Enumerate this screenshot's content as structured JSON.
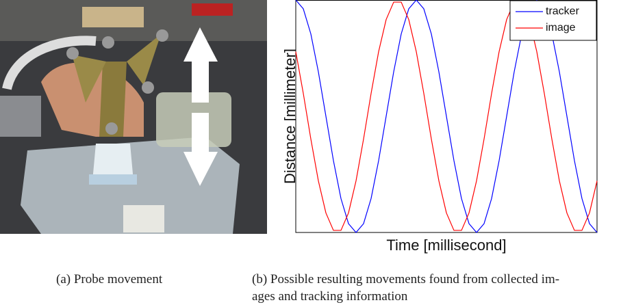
{
  "chart_data": {
    "type": "line",
    "xlabel": "Time [millisecond]",
    "ylabel": "Distance [millimeter]",
    "x": [
      0,
      2.5,
      5,
      7.5,
      10,
      12.5,
      15,
      17.5,
      20,
      22.5,
      25,
      27.5,
      30,
      32.5,
      35,
      37.5,
      40,
      42.5,
      45,
      47.5,
      50,
      52.5,
      55,
      57.5,
      60,
      62.5,
      65,
      67.5,
      70,
      72.5,
      75,
      77.5,
      80,
      82.5,
      85,
      87.5,
      90,
      92.5,
      95,
      97.5,
      100
    ],
    "series": [
      {
        "name": "tracker",
        "color": "#0000ff",
        "values": [
          1,
          0.962,
          0.854,
          0.691,
          0.5,
          0.309,
          0.146,
          0.038,
          0,
          0.038,
          0.146,
          0.309,
          0.5,
          0.691,
          0.854,
          0.962,
          1,
          0.962,
          0.854,
          0.691,
          0.5,
          0.309,
          0.146,
          0.038,
          0,
          0.038,
          0.146,
          0.309,
          0.5,
          0.691,
          0.854,
          0.962,
          1,
          0.962,
          0.854,
          0.691,
          0.5,
          0.309,
          0.146,
          0.038,
          0
        ]
      },
      {
        "name": "image",
        "color": "#ff0000",
        "values": [
          0.778,
          0.598,
          0.402,
          0.222,
          0.084,
          0.009,
          0.009,
          0.084,
          0.222,
          0.402,
          0.598,
          0.778,
          0.916,
          0.991,
          0.991,
          0.916,
          0.778,
          0.598,
          0.402,
          0.222,
          0.084,
          0.009,
          0.009,
          0.084,
          0.222,
          0.402,
          0.598,
          0.778,
          0.916,
          0.991,
          0.991,
          0.916,
          0.778,
          0.598,
          0.402,
          0.222,
          0.084,
          0.009,
          0.009,
          0.084,
          0.222
        ]
      }
    ],
    "xlim": [
      0,
      100
    ],
    "ylim": [
      0,
      1
    ],
    "legend": "upper right"
  },
  "captions": {
    "a": "(a) Probe movement",
    "b": [
      "(b) Possible resulting movements found from collected im-",
      "ages and tracking information"
    ]
  }
}
